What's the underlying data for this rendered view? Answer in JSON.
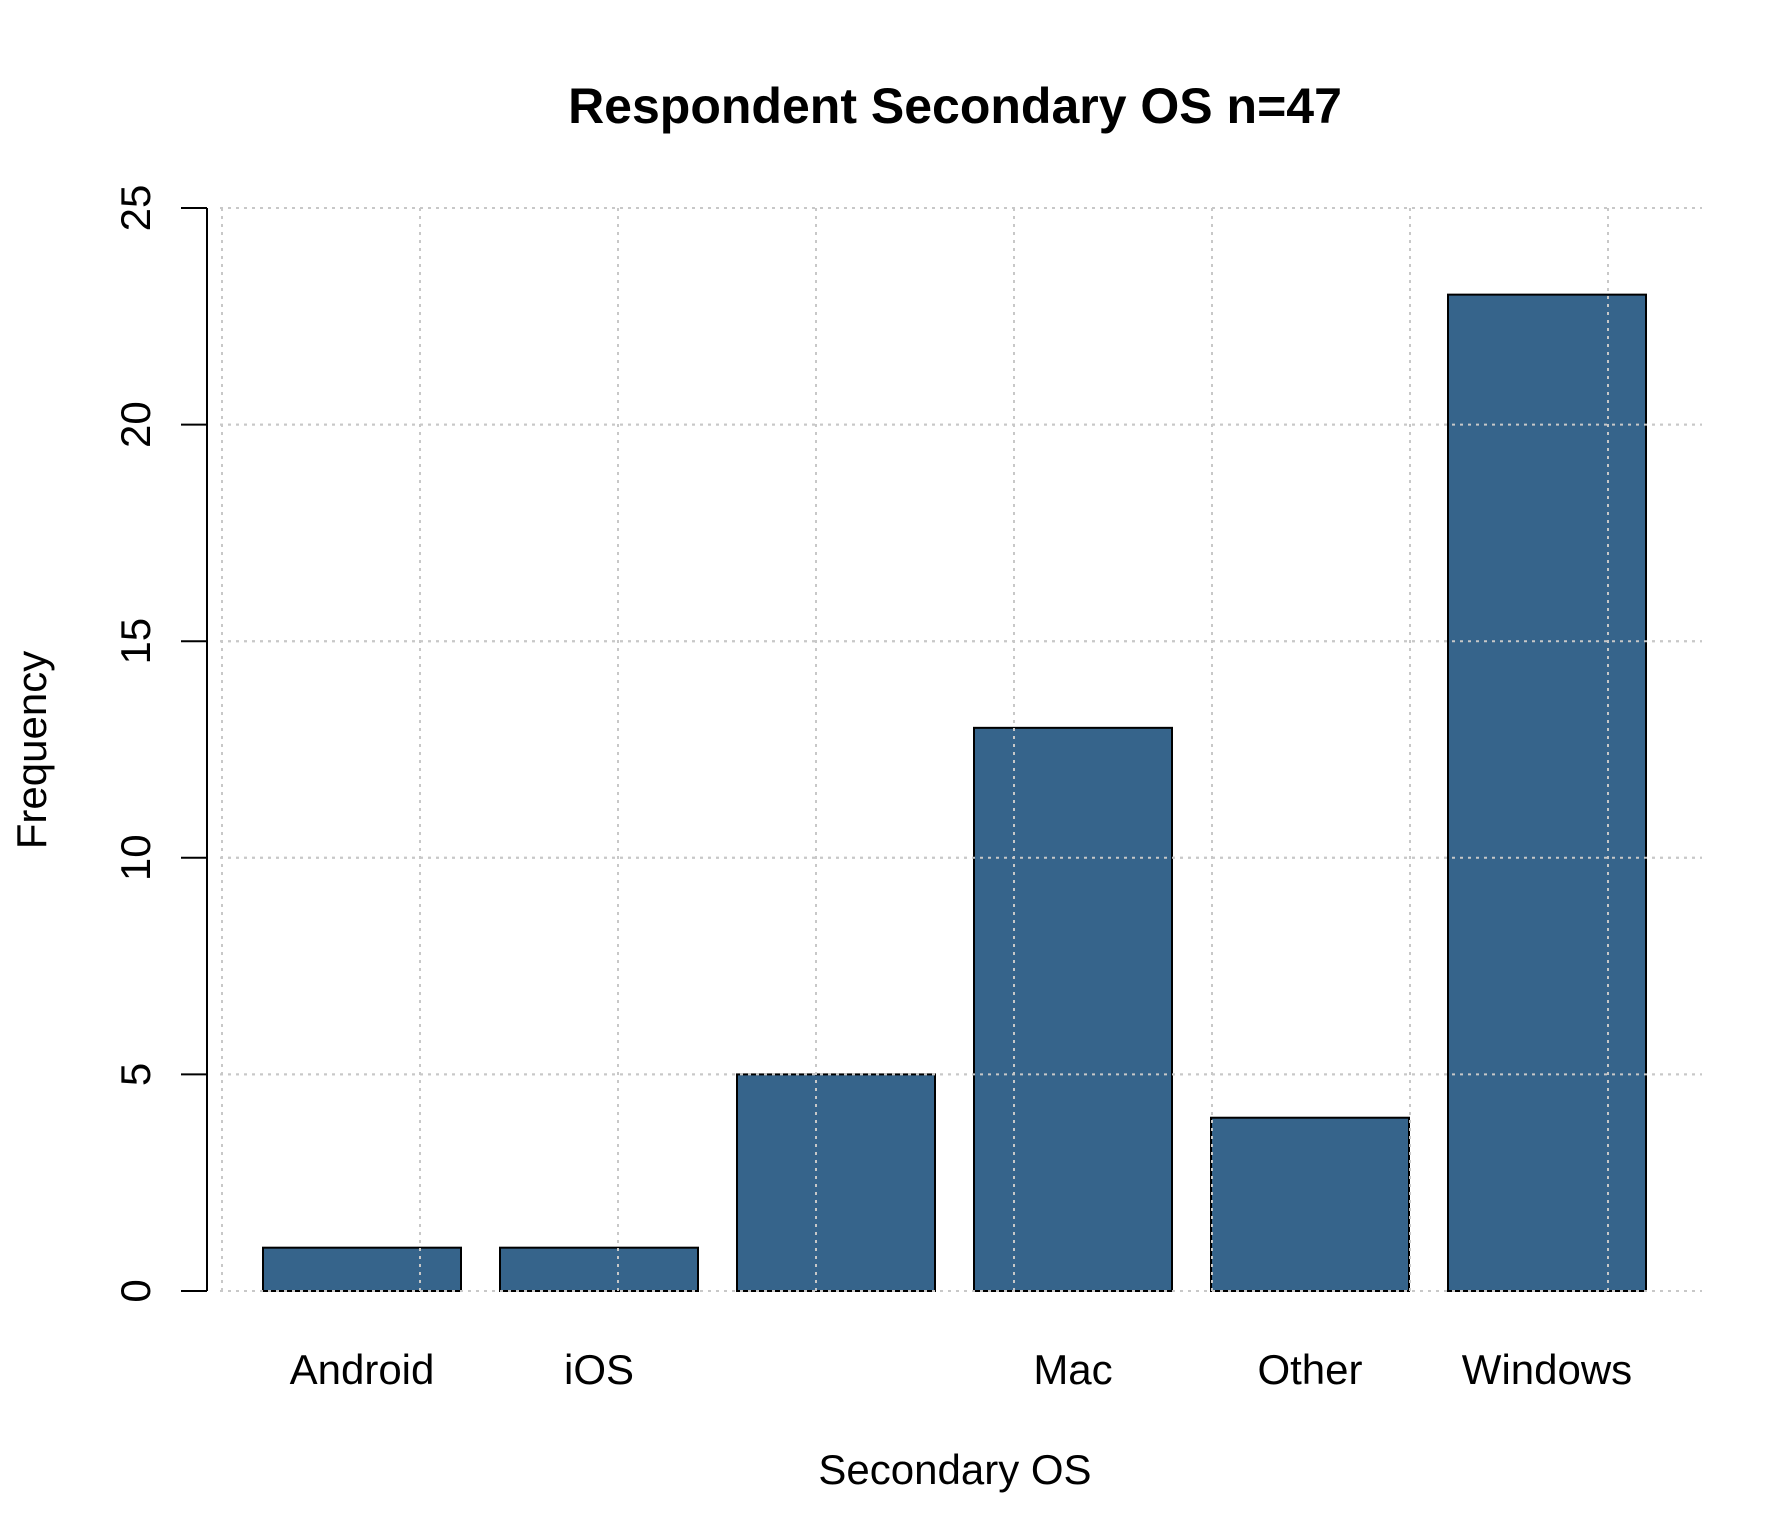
{
  "chart_data": {
    "type": "bar",
    "title": "Respondent Secondary OS n=47",
    "xlabel": "Secondary OS",
    "ylabel": "Frequency",
    "categories": [
      "Android",
      "iOS",
      "",
      "Mac",
      "Other",
      "Windows"
    ],
    "values": [
      1,
      1,
      5,
      13,
      4,
      23
    ],
    "ylim": [
      0,
      25
    ],
    "yticks": [
      0,
      5,
      10,
      15,
      20,
      25
    ],
    "grid": true,
    "bar_color": "#36648b"
  }
}
